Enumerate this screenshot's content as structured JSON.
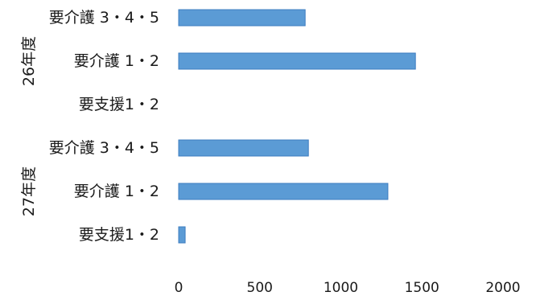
{
  "chart_data": {
    "type": "bar",
    "orientation": "horizontal",
    "groups": [
      {
        "label": "26年度",
        "categories": [
          "要介護 3・4・5",
          "要介護 1・2",
          "要支援1・2"
        ],
        "values": [
          780,
          1460,
          0
        ]
      },
      {
        "label": "27年度",
        "categories": [
          "要介護 3・4・5",
          "要介護 1・2",
          "要支援1・2"
        ],
        "values": [
          800,
          1290,
          40
        ]
      }
    ],
    "xticks": [
      "0",
      "500",
      "1000",
      "1500",
      "2000"
    ],
    "xlim": [
      0,
      2000
    ],
    "grid": false,
    "legend": "none",
    "bar_color": "#5b9bd5",
    "title": "",
    "xlabel": "",
    "ylabel": ""
  }
}
